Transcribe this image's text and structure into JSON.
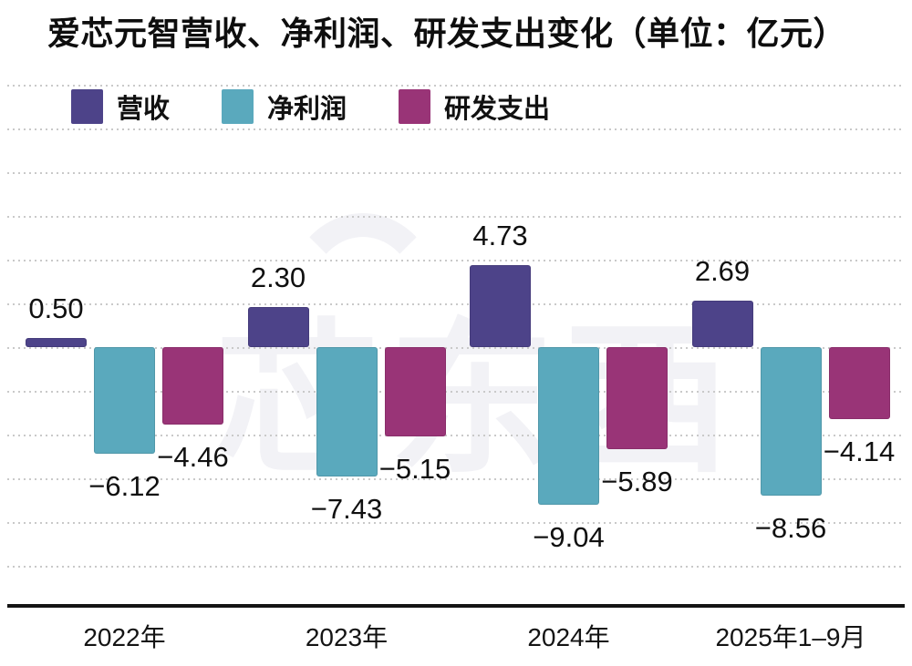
{
  "title": "爱芯元智营收、净利润、研发支出变化（单位：亿元）",
  "unit": "亿元",
  "watermark": "芯东西",
  "colors": {
    "revenue": "#4D4389",
    "net_profit": "#5AA9BD",
    "rd_spend": "#993477",
    "gridline": "#c9c9c9",
    "axis": "#141414",
    "text": "#101010",
    "watermark": "#f2f2f6",
    "background": "#ffffff"
  },
  "chart_data": {
    "type": "bar",
    "title": "爱芯元智营收、净利润、研发支出变化（单位：亿元）",
    "categories": [
      "2022年",
      "2023年",
      "2024年",
      "2025年1–9月"
    ],
    "series": [
      {
        "key": "revenue",
        "name": "营收",
        "color": "#4D4389",
        "values": [
          0.5,
          2.3,
          4.73,
          2.69
        ]
      },
      {
        "key": "net-profit",
        "name": "净利润",
        "color": "#5AA9BD",
        "values": [
          -6.12,
          -7.43,
          -9.04,
          -8.56
        ]
      },
      {
        "key": "rd-spend",
        "name": "研发支出",
        "color": "#993477",
        "values": [
          -4.46,
          -5.15,
          -5.89,
          -4.14
        ]
      }
    ],
    "xlabel": "",
    "ylabel": "",
    "ylim": [
      -12.6,
      15.1
    ],
    "grid": {
      "orientation": "horizontal",
      "style": "dotted"
    },
    "legend_position": "top-left",
    "value_labels_shown": true,
    "y_axis_ticks_shown": false
  }
}
